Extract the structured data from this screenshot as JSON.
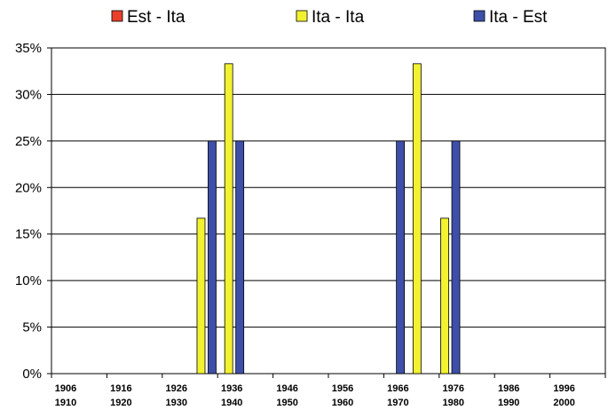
{
  "chart_data": {
    "type": "bar",
    "legend_position": "top",
    "grid": true,
    "ylim": [
      0,
      35
    ],
    "y_ticks": [
      "0%",
      "5%",
      "10%",
      "15%",
      "20%",
      "25%",
      "30%",
      "35%"
    ],
    "categories": [
      {
        "top": "1906",
        "bottom": "1910"
      },
      {
        "top": "1916",
        "bottom": "1920"
      },
      {
        "top": "1926",
        "bottom": "1930"
      },
      {
        "top": "1936",
        "bottom": "1940"
      },
      {
        "top": "1946",
        "bottom": "1950"
      },
      {
        "top": "1956",
        "bottom": "1960"
      },
      {
        "top": "1966",
        "bottom": "1970"
      },
      {
        "top": "1976",
        "bottom": "1980"
      },
      {
        "top": "1986",
        "bottom": "1990"
      },
      {
        "top": "1996",
        "bottom": "2000"
      }
    ],
    "series": [
      {
        "name": "Est - Ita",
        "color": "#e8402a",
        "values": [
          0,
          0,
          0,
          0,
          0,
          0,
          0,
          0,
          0,
          0
        ]
      },
      {
        "name": "Ita - Ita",
        "color": "#f2f230",
        "values": [
          0,
          0,
          0,
          0,
          0,
          0,
          0,
          0,
          0,
          0
        ]
      },
      {
        "name": "Ita - Est",
        "color": "#3d4fa8",
        "values": [
          0,
          0,
          0,
          0,
          0,
          0,
          0,
          0,
          0,
          0
        ]
      }
    ],
    "bars": [
      {
        "series": "Ita - Ita",
        "year": 1932.5,
        "value": 16.7
      },
      {
        "series": "Ita - Est",
        "year": 1934.5,
        "value": 25
      },
      {
        "series": "Ita - Ita",
        "year": 1937.5,
        "value": 33.3
      },
      {
        "series": "Ita - Est",
        "year": 1939.5,
        "value": 25
      },
      {
        "series": "Ita - Est",
        "year": 1968.5,
        "value": 25
      },
      {
        "series": "Ita - Ita",
        "year": 1971.5,
        "value": 33.3
      },
      {
        "series": "Ita - Ita",
        "year": 1976.5,
        "value": 16.7
      },
      {
        "series": "Ita - Est",
        "year": 1978.5,
        "value": 25
      }
    ]
  }
}
